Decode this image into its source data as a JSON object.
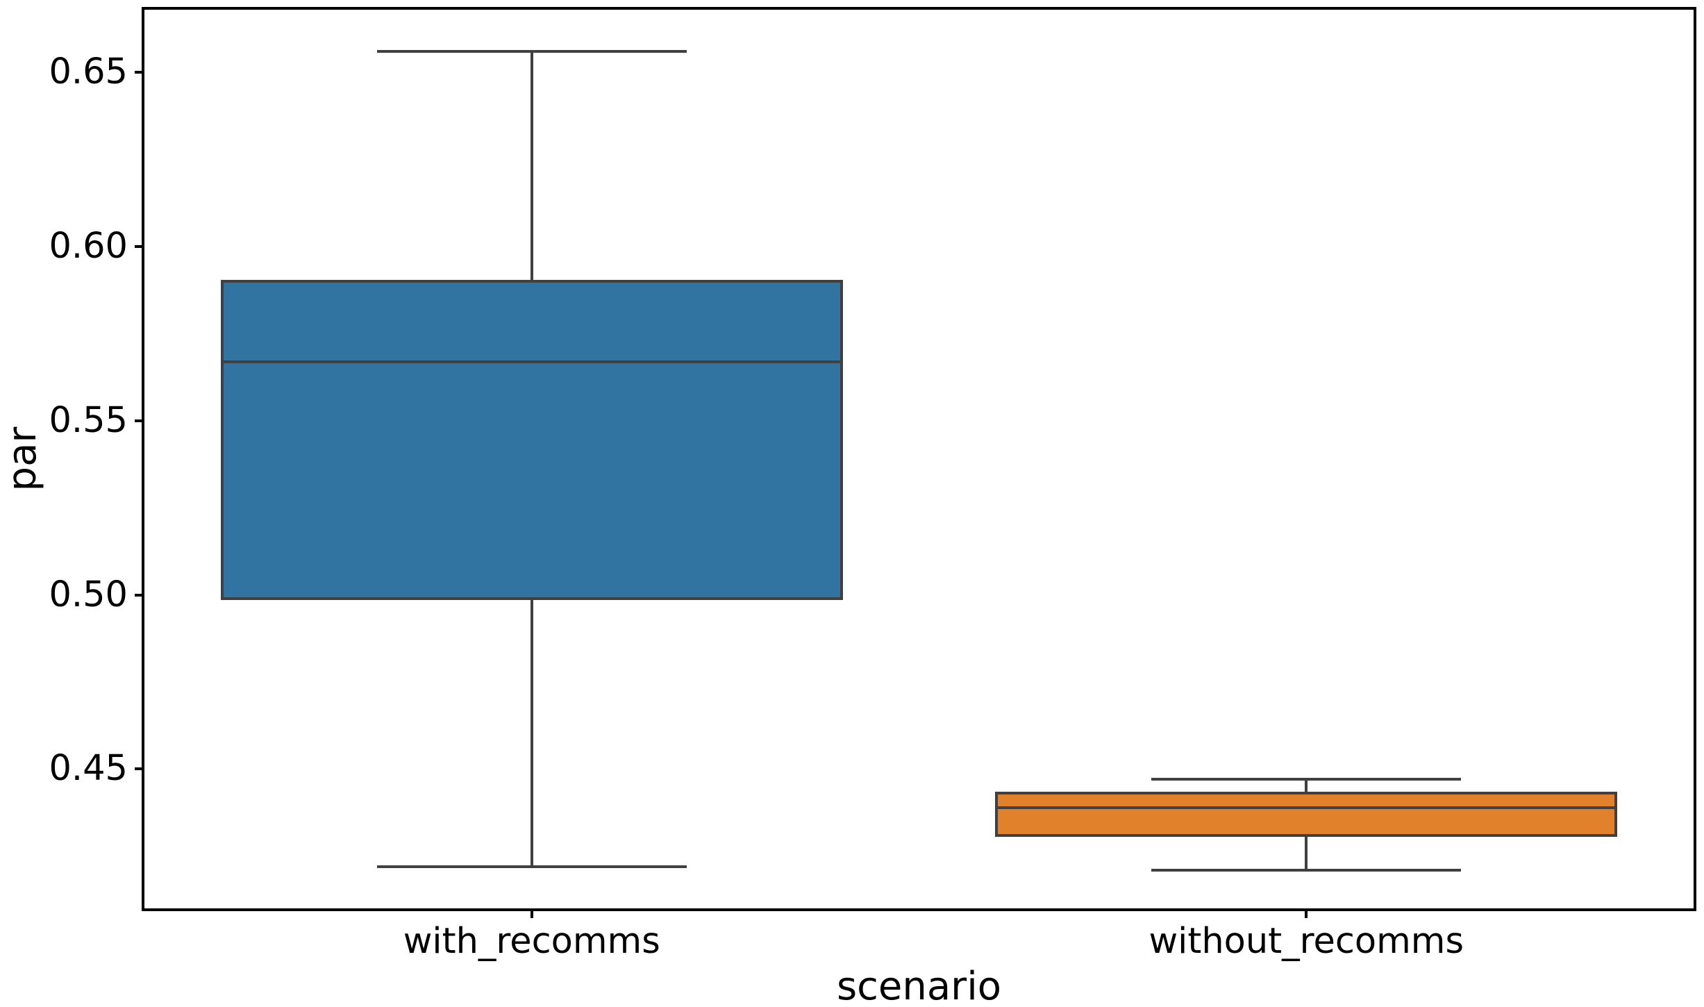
{
  "figure": {
    "background": "#ffffff",
    "spine_color": "#000000",
    "text_color": "#000000"
  },
  "chart_data": {
    "type": "box",
    "title": "",
    "xlabel": "scenario",
    "ylabel": "par",
    "categories": [
      "with_recomms",
      "without_recomms"
    ],
    "yticks": [
      0.65,
      0.6,
      0.55,
      0.5,
      0.45
    ],
    "ylim": [
      0.41,
      0.668
    ],
    "grid": false,
    "legend_position": "none",
    "line_color": "#404040",
    "series": [
      {
        "name": "with_recomms",
        "fill_color": "#3274a1",
        "whisker_low": 0.422,
        "q1": 0.499,
        "median": 0.567,
        "q3": 0.59,
        "whisker_high": 0.656,
        "outliers": []
      },
      {
        "name": "without_recomms",
        "fill_color": "#e1812c",
        "whisker_low": 0.421,
        "q1": 0.431,
        "median": 0.439,
        "q3": 0.443,
        "whisker_high": 0.447,
        "outliers": []
      }
    ]
  }
}
